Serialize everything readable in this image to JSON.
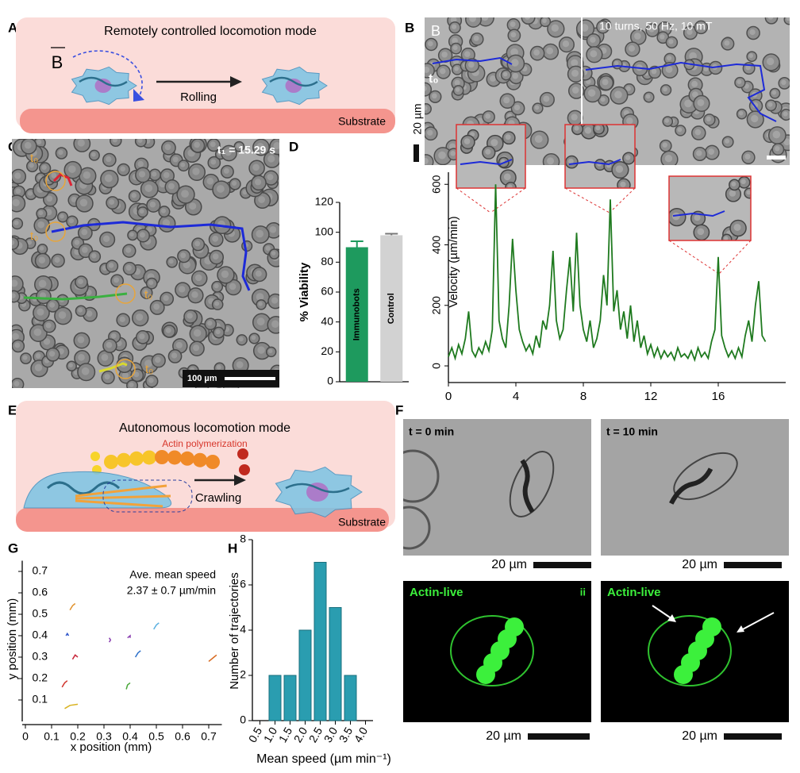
{
  "figure": {
    "panel_labels": [
      "A",
      "B",
      "C",
      "D",
      "E",
      "F",
      "G",
      "H"
    ],
    "a": {
      "title": "Remotely controlled locomotion mode",
      "field": "B",
      "motion": "Rolling",
      "substrate": "Substrate"
    },
    "b": {
      "inset_letter": "B",
      "caption": "10 turns, 50 Hz, 10 mT",
      "t0": "t₀",
      "scale": "20 µm"
    },
    "c": {
      "time": "t₁ = 15.29 s",
      "t0": "t₀",
      "scale": "100 µm"
    },
    "e": {
      "title": "Autonomous locomotion mode",
      "process": "Actin polymerization",
      "motion": "Crawling",
      "substrate": "Substrate"
    },
    "f": {
      "t_start": "t = 0 min",
      "t_end": "t = 10 min",
      "scale": "20 µm",
      "stain": "Actin-live",
      "roman": "ii"
    }
  },
  "chart_data": [
    {
      "type": "bar",
      "ylabel": "% Viability",
      "categories": [
        "Immunobots",
        "Control"
      ],
      "values": [
        90,
        98
      ],
      "errors": [
        4,
        1
      ],
      "colors": [
        "#1e9a5e",
        "#d2d2d2"
      ],
      "ylim": [
        0,
        120
      ],
      "yticks": [
        0,
        20,
        40,
        60,
        80,
        100,
        120
      ]
    },
    {
      "type": "line",
      "ylabel": "Velocity (µm/min)",
      "color": "#1f7a1f",
      "x": [
        0,
        0.2,
        0.4,
        0.6,
        0.8,
        1,
        1.2,
        1.4,
        1.6,
        1.8,
        2,
        2.2,
        2.4,
        2.6,
        2.8,
        3,
        3.2,
        3.4,
        3.6,
        3.8,
        4,
        4.2,
        4.4,
        4.6,
        4.8,
        5,
        5.2,
        5.4,
        5.6,
        5.8,
        6,
        6.2,
        6.4,
        6.6,
        6.8,
        7,
        7.2,
        7.4,
        7.6,
        7.8,
        8,
        8.2,
        8.4,
        8.6,
        8.8,
        9,
        9.2,
        9.4,
        9.6,
        9.8,
        10,
        10.2,
        10.4,
        10.6,
        10.8,
        11,
        11.2,
        11.4,
        11.6,
        11.8,
        12,
        12.2,
        12.4,
        12.6,
        12.8,
        13,
        13.2,
        13.4,
        13.6,
        13.8,
        14,
        14.2,
        14.4,
        14.6,
        14.8,
        15,
        15.2,
        15.4,
        15.6,
        15.8,
        16,
        16.2,
        16.4,
        16.6,
        16.8,
        17,
        17.2,
        17.4,
        17.6,
        17.8,
        18,
        18.2,
        18.4,
        18.6,
        18.8
      ],
      "values": [
        30,
        60,
        25,
        70,
        40,
        90,
        180,
        50,
        30,
        60,
        40,
        80,
        50,
        120,
        600,
        150,
        90,
        60,
        200,
        420,
        250,
        120,
        80,
        50,
        70,
        40,
        100,
        60,
        150,
        120,
        200,
        380,
        150,
        90,
        120,
        250,
        360,
        180,
        440,
        200,
        120,
        80,
        150,
        60,
        90,
        150,
        300,
        200,
        550,
        180,
        250,
        120,
        180,
        90,
        200,
        80,
        150,
        60,
        100,
        40,
        70,
        30,
        60,
        25,
        50,
        30,
        45,
        20,
        60,
        30,
        40,
        25,
        50,
        20,
        60,
        30,
        45,
        25,
        80,
        120,
        360,
        100,
        60,
        30,
        50,
        25,
        60,
        30,
        100,
        150,
        80,
        200,
        280,
        100,
        80
      ],
      "xlim": [
        0,
        20
      ],
      "xticks": [
        0,
        4,
        8,
        12,
        16
      ],
      "ylim": [
        -55,
        640
      ],
      "yticks": [
        0,
        200,
        400,
        600
      ]
    },
    {
      "type": "line",
      "xlabel": "x position (mm)",
      "ylabel": "y position (mm)",
      "annotation": [
        "Ave. mean speed",
        "2.37 ± 0.7 µm/min"
      ],
      "xlim": [
        0,
        0.75
      ],
      "xticks": [
        0,
        0.1,
        0.2,
        0.3,
        0.4,
        0.5,
        0.6,
        0.7
      ],
      "ylim": [
        0,
        0.75
      ],
      "yticks": [
        0.1,
        0.2,
        0.3,
        0.4,
        0.5,
        0.6,
        0.7
      ],
      "series": [
        {
          "color": "#d9b321",
          "x": [
            0.15,
            0.17,
            0.2
          ],
          "values": [
            0.06,
            0.075,
            0.08
          ]
        },
        {
          "color": "#e0902a",
          "x": [
            0.17,
            0.18,
            0.19
          ],
          "values": [
            0.52,
            0.54,
            0.55
          ]
        },
        {
          "color": "#2a52c9",
          "x": [
            0.155,
            0.16,
            0.165
          ],
          "values": [
            0.4,
            0.41,
            0.4
          ]
        },
        {
          "color": "#c8283c",
          "x": [
            0.18,
            0.19,
            0.2
          ],
          "values": [
            0.29,
            0.31,
            0.3
          ]
        },
        {
          "color": "#d0342c",
          "x": [
            0.14,
            0.15,
            0.16
          ],
          "values": [
            0.16,
            0.18,
            0.19
          ]
        },
        {
          "color": "#8a3fb0",
          "x": [
            0.32,
            0.325,
            0.32
          ],
          "values": [
            0.37,
            0.38,
            0.39
          ]
        },
        {
          "color": "#8a3fb0",
          "x": [
            0.39,
            0.4,
            0.4
          ],
          "values": [
            0.39,
            0.4,
            0.39
          ]
        },
        {
          "color": "#2a6fc9",
          "x": [
            0.42,
            0.43,
            0.44
          ],
          "values": [
            0.3,
            0.32,
            0.33
          ]
        },
        {
          "color": "#4aa83a",
          "x": [
            0.385,
            0.39,
            0.4
          ],
          "values": [
            0.15,
            0.17,
            0.18
          ]
        },
        {
          "color": "#5ab0e0",
          "x": [
            0.49,
            0.5,
            0.51
          ],
          "values": [
            0.43,
            0.45,
            0.46
          ]
        },
        {
          "color": "#d86a20",
          "x": [
            0.7,
            0.72,
            0.73
          ],
          "values": [
            0.28,
            0.3,
            0.31
          ]
        }
      ]
    },
    {
      "type": "histogram",
      "xlabel": "Mean speed (µm min⁻¹)",
      "ylabel": "Number of trajectories",
      "color": "#2a9db0",
      "bins": [
        0.75,
        1.25,
        1.75,
        2.25,
        2.75,
        3.25,
        3.75
      ],
      "values": [
        2,
        2,
        4,
        7,
        5,
        2
      ],
      "xlim": [
        0.25,
        4.25
      ],
      "xticks": [
        0.5,
        {
          "value": 1,
          "label": "1.0"
        },
        1.5,
        {
          "value": 2,
          "label": "2.0"
        },
        2.5,
        {
          "value": 3,
          "label": "3.0"
        },
        3.5,
        {
          "value": 4,
          "label": "4.0"
        }
      ],
      "ylim": [
        0,
        8
      ],
      "yticks": [
        0,
        2,
        4,
        6,
        8
      ]
    }
  ]
}
